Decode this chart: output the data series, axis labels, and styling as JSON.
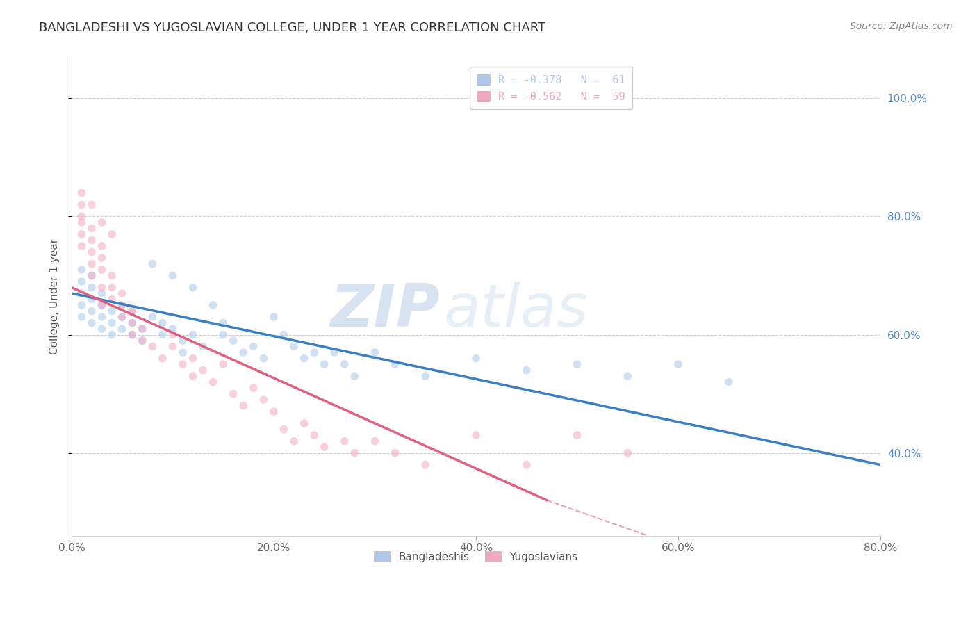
{
  "title": "BANGLADESHI VS YUGOSLAVIAN COLLEGE, UNDER 1 YEAR CORRELATION CHART",
  "source": "Source: ZipAtlas.com",
  "ylabel": "College, Under 1 year",
  "x_tick_labels": [
    "0.0%",
    "20.0%",
    "40.0%",
    "60.0%",
    "80.0%"
  ],
  "x_tick_values": [
    0,
    20,
    40,
    60,
    80
  ],
  "y_tick_labels": [
    "40.0%",
    "60.0%",
    "80.0%",
    "100.0%"
  ],
  "y_tick_values": [
    40,
    60,
    80,
    100
  ],
  "xlim": [
    0,
    80
  ],
  "ylim": [
    26,
    107
  ],
  "legend_entries": [
    {
      "label": "R = -0.378   N =  61",
      "color": "#aec6e8"
    },
    {
      "label": "R = -0.562   N =  59",
      "color": "#f0a8c0"
    }
  ],
  "legend_bottom": [
    {
      "label": "Bangladeshis",
      "color": "#aec6e8"
    },
    {
      "label": "Yugoslavians",
      "color": "#f0a8c0"
    }
  ],
  "blue_scatter": [
    [
      1,
      65
    ],
    [
      1,
      67
    ],
    [
      1,
      69
    ],
    [
      1,
      71
    ],
    [
      1,
      63
    ],
    [
      2,
      66
    ],
    [
      2,
      68
    ],
    [
      2,
      64
    ],
    [
      2,
      62
    ],
    [
      2,
      70
    ],
    [
      3,
      65
    ],
    [
      3,
      63
    ],
    [
      3,
      61
    ],
    [
      3,
      67
    ],
    [
      4,
      64
    ],
    [
      4,
      62
    ],
    [
      4,
      60
    ],
    [
      5,
      63
    ],
    [
      5,
      65
    ],
    [
      5,
      61
    ],
    [
      6,
      62
    ],
    [
      6,
      60
    ],
    [
      6,
      64
    ],
    [
      7,
      61
    ],
    [
      7,
      59
    ],
    [
      8,
      63
    ],
    [
      8,
      72
    ],
    [
      9,
      60
    ],
    [
      9,
      62
    ],
    [
      10,
      61
    ],
    [
      10,
      70
    ],
    [
      11,
      59
    ],
    [
      11,
      57
    ],
    [
      12,
      60
    ],
    [
      12,
      68
    ],
    [
      13,
      58
    ],
    [
      14,
      65
    ],
    [
      15,
      62
    ],
    [
      15,
      60
    ],
    [
      16,
      59
    ],
    [
      17,
      57
    ],
    [
      18,
      58
    ],
    [
      19,
      56
    ],
    [
      20,
      63
    ],
    [
      21,
      60
    ],
    [
      22,
      58
    ],
    [
      23,
      56
    ],
    [
      24,
      57
    ],
    [
      25,
      55
    ],
    [
      26,
      57
    ],
    [
      27,
      55
    ],
    [
      28,
      53
    ],
    [
      30,
      57
    ],
    [
      32,
      55
    ],
    [
      35,
      53
    ],
    [
      40,
      56
    ],
    [
      45,
      54
    ],
    [
      50,
      55
    ],
    [
      55,
      53
    ],
    [
      60,
      55
    ],
    [
      65,
      52
    ]
  ],
  "pink_scatter": [
    [
      1,
      82
    ],
    [
      1,
      79
    ],
    [
      1,
      77
    ],
    [
      1,
      80
    ],
    [
      1,
      75
    ],
    [
      2,
      78
    ],
    [
      2,
      76
    ],
    [
      2,
      74
    ],
    [
      2,
      72
    ],
    [
      2,
      70
    ],
    [
      3,
      75
    ],
    [
      3,
      73
    ],
    [
      3,
      71
    ],
    [
      3,
      68
    ],
    [
      3,
      65
    ],
    [
      4,
      70
    ],
    [
      4,
      68
    ],
    [
      4,
      66
    ],
    [
      5,
      67
    ],
    [
      5,
      65
    ],
    [
      5,
      63
    ],
    [
      6,
      64
    ],
    [
      6,
      62
    ],
    [
      6,
      60
    ],
    [
      7,
      61
    ],
    [
      7,
      59
    ],
    [
      8,
      58
    ],
    [
      9,
      56
    ],
    [
      10,
      60
    ],
    [
      10,
      58
    ],
    [
      11,
      55
    ],
    [
      12,
      53
    ],
    [
      12,
      56
    ],
    [
      13,
      54
    ],
    [
      14,
      52
    ],
    [
      15,
      55
    ],
    [
      16,
      50
    ],
    [
      17,
      48
    ],
    [
      18,
      51
    ],
    [
      19,
      49
    ],
    [
      20,
      47
    ],
    [
      21,
      44
    ],
    [
      22,
      42
    ],
    [
      23,
      45
    ],
    [
      24,
      43
    ],
    [
      25,
      41
    ],
    [
      27,
      42
    ],
    [
      28,
      40
    ],
    [
      30,
      42
    ],
    [
      32,
      40
    ],
    [
      35,
      38
    ],
    [
      40,
      43
    ],
    [
      45,
      38
    ],
    [
      50,
      43
    ],
    [
      55,
      40
    ],
    [
      1,
      84
    ],
    [
      2,
      82
    ],
    [
      3,
      79
    ],
    [
      4,
      77
    ]
  ],
  "blue_line": {
    "x0": 0,
    "y0": 67,
    "x1": 80,
    "y1": 38
  },
  "pink_line_solid": {
    "x0": 0,
    "y0": 68,
    "x1": 47,
    "y1": 32
  },
  "pink_line_dashed": {
    "x0": 47,
    "y0": 32,
    "x1": 57,
    "y1": 26
  },
  "watermark_zip": "ZIP",
  "watermark_atlas": "atlas",
  "background_color": "#ffffff",
  "scatter_alpha": 0.55,
  "scatter_size": 70,
  "grid_color": "#d0d0d0",
  "blue_line_color": "#3a7fc1",
  "pink_line_color": "#e06080",
  "blue_scatter_color": "#a8c8e8",
  "pink_scatter_color": "#f4a8c4",
  "right_axis_color": "#5588cc",
  "title_fontsize": 13,
  "source_fontsize": 10,
  "legend_fontsize": 11,
  "axis_label_fontsize": 11
}
